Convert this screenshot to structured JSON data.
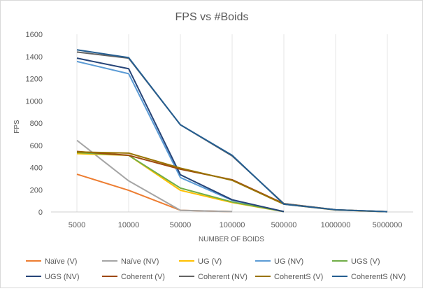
{
  "chart_data": {
    "type": "line",
    "title": "FPS vs #Boids",
    "xlabel": "NUMBER OF BOIDS",
    "ylabel": "FPS",
    "categories": [
      "5000",
      "10000",
      "50000",
      "100000",
      "500000",
      "1000000",
      "5000000"
    ],
    "ylim": [
      0,
      1600
    ],
    "yticks": [
      0,
      200,
      400,
      600,
      800,
      1000,
      1200,
      1400,
      1600
    ],
    "grid": "vertical lines at categories",
    "legend_position": "bottom",
    "series": [
      {
        "name": "Naïve (V)",
        "color": "#ed7d31",
        "values": [
          340,
          195,
          15,
          3,
          null,
          null,
          null
        ]
      },
      {
        "name": "Naïve (NV)",
        "color": "#a5a5a5",
        "values": [
          645,
          280,
          15,
          3,
          null,
          null,
          null
        ]
      },
      {
        "name": "UG (V)",
        "color": "#ffc000",
        "values": [
          525,
          510,
          195,
          85,
          3,
          null,
          null
        ]
      },
      {
        "name": "UG (NV)",
        "color": "#5b9bd5",
        "values": [
          1355,
          1245,
          310,
          105,
          3,
          null,
          null
        ]
      },
      {
        "name": "UGS (V)",
        "color": "#70ad47",
        "values": [
          535,
          510,
          215,
          90,
          3,
          null,
          null
        ]
      },
      {
        "name": "UGS (NV)",
        "color": "#264478",
        "values": [
          1385,
          1290,
          335,
          110,
          3,
          null,
          null
        ]
      },
      {
        "name": "Coherent (V)",
        "color": "#9e480e",
        "values": [
          545,
          510,
          385,
          290,
          75,
          20,
          2
        ]
      },
      {
        "name": "Coherent (NV)",
        "color": "#636363",
        "values": [
          1440,
          1385,
          785,
          505,
          75,
          20,
          2
        ]
      },
      {
        "name": "CoherentS (V)",
        "color": "#997300",
        "values": [
          540,
          530,
          395,
          285,
          70,
          18,
          2
        ]
      },
      {
        "name": "CoherentS (NV)",
        "color": "#255e91",
        "values": [
          1460,
          1390,
          785,
          510,
          70,
          20,
          2
        ]
      }
    ]
  }
}
